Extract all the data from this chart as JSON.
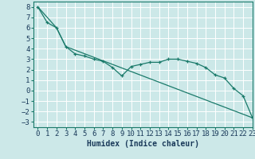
{
  "xlabel": "Humidex (Indice chaleur)",
  "background_color": "#cce8e8",
  "grid_color": "#ffffff",
  "line_color": "#1a7a6a",
  "xlim": [
    -0.5,
    23
  ],
  "ylim": [
    -3.5,
    8.5
  ],
  "xticks": [
    0,
    1,
    2,
    3,
    4,
    5,
    6,
    7,
    8,
    9,
    10,
    11,
    12,
    13,
    14,
    15,
    16,
    17,
    18,
    19,
    20,
    21,
    22,
    23
  ],
  "yticks": [
    -3,
    -2,
    -1,
    0,
    1,
    2,
    3,
    4,
    5,
    6,
    7,
    8
  ],
  "line1_x": [
    0,
    1,
    2,
    3,
    4,
    5,
    6,
    7,
    8,
    9,
    10,
    11,
    12,
    13,
    14,
    15,
    16,
    17,
    18,
    19,
    20,
    21,
    22,
    23
  ],
  "line1_y": [
    8.0,
    6.5,
    6.0,
    4.2,
    3.5,
    3.3,
    3.0,
    2.8,
    2.2,
    1.4,
    2.3,
    2.5,
    2.7,
    2.7,
    3.0,
    3.0,
    2.8,
    2.6,
    2.2,
    1.5,
    1.2,
    0.2,
    -0.5,
    -2.6
  ],
  "line2_x": [
    0,
    2,
    3,
    23
  ],
  "line2_y": [
    8.0,
    6.0,
    4.2,
    -2.6
  ],
  "font_size_xlabel": 7,
  "font_size_ticks": 6.5
}
